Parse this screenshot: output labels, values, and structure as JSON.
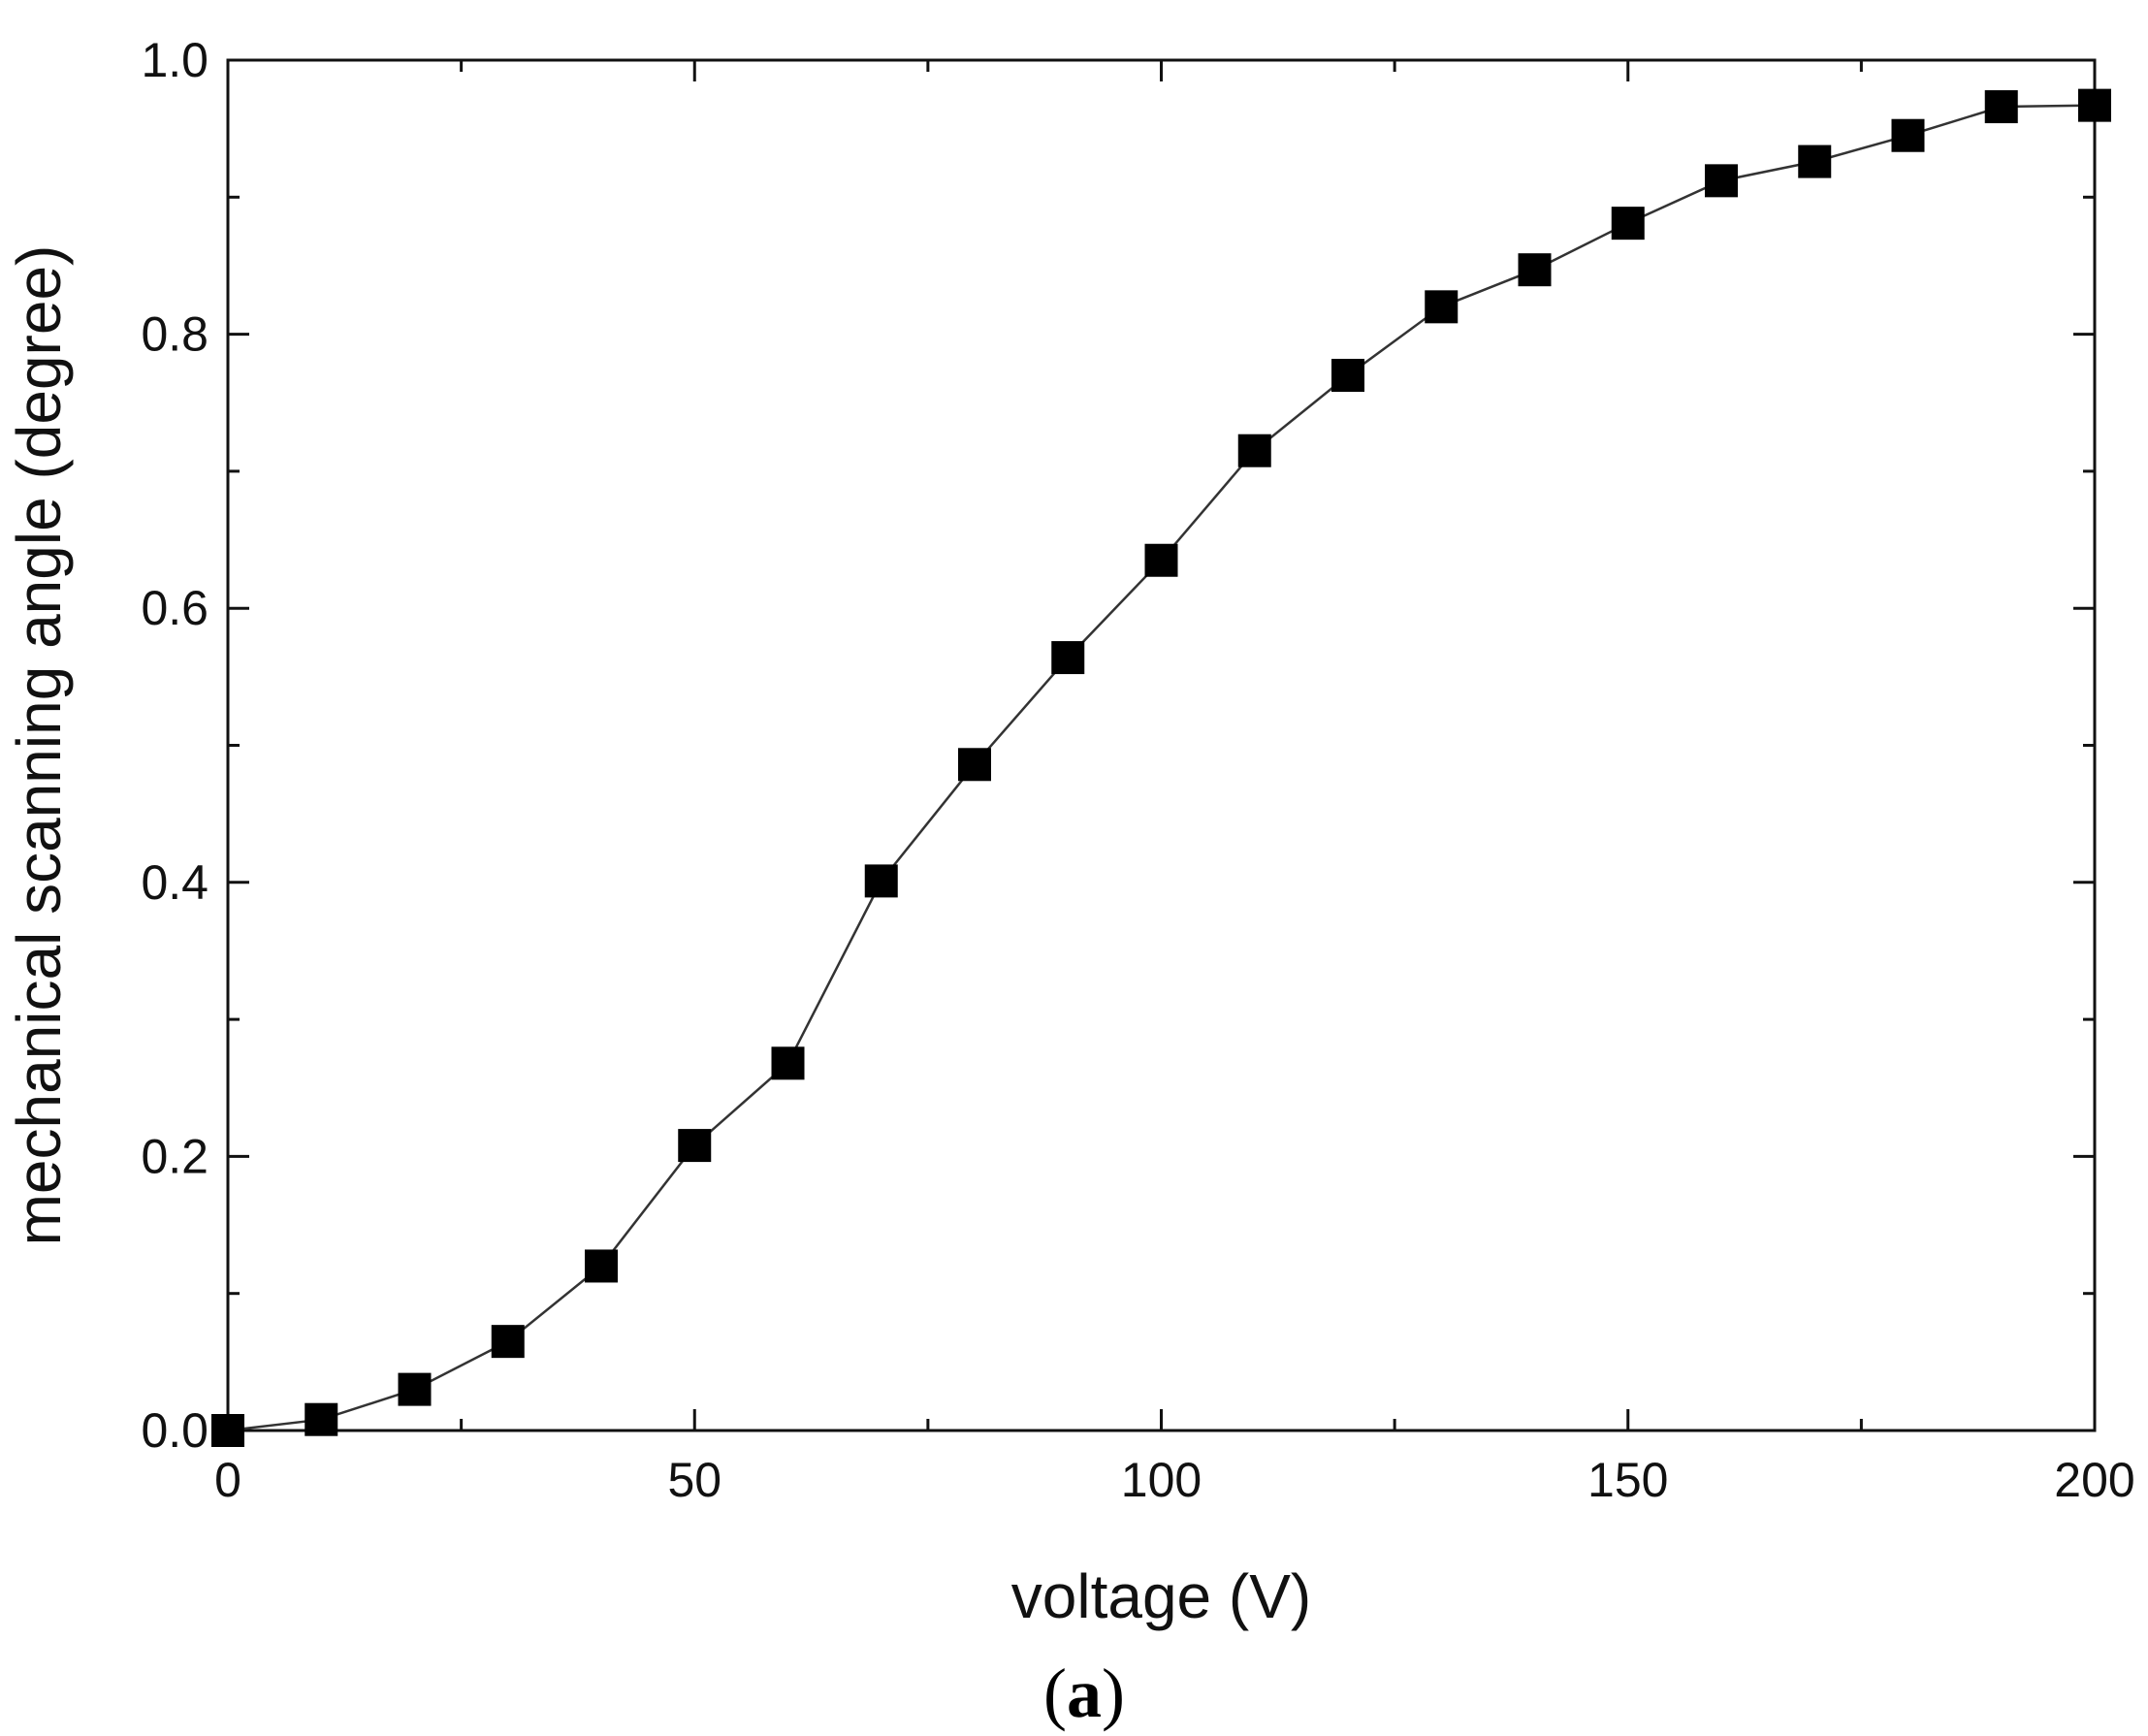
{
  "chart_data": {
    "type": "line",
    "title": "",
    "xlabel": "voltage (V)",
    "ylabel": "mechanical scanning angle (degree)",
    "xlim": [
      0,
      200
    ],
    "ylim": [
      0.0,
      1.0
    ],
    "x_ticks": [
      0,
      50,
      100,
      150,
      200
    ],
    "x_tick_labels": [
      "0",
      "50",
      "100",
      "150",
      "200"
    ],
    "x_minor_ticks": [
      25,
      75,
      125,
      175
    ],
    "y_ticks": [
      0.0,
      0.2,
      0.4,
      0.6,
      0.8,
      1.0
    ],
    "y_tick_labels": [
      "0.0",
      "0.2",
      "0.4",
      "0.6",
      "0.8",
      "1.0"
    ],
    "y_minor_ticks": [
      0.1,
      0.3,
      0.5,
      0.7,
      0.9
    ],
    "grid": false,
    "marker": "square",
    "series": [
      {
        "x": [
          0,
          10,
          20,
          30,
          40,
          50,
          60,
          70,
          80,
          90,
          100,
          110,
          120,
          130,
          140,
          150,
          160,
          170,
          180,
          190,
          200
        ],
        "y": [
          0.0,
          0.008,
          0.03,
          0.065,
          0.12,
          0.208,
          0.268,
          0.401,
          0.486,
          0.564,
          0.635,
          0.715,
          0.77,
          0.82,
          0.847,
          0.881,
          0.912,
          0.926,
          0.945,
          0.966,
          0.967
        ]
      }
    ],
    "colors": {
      "line": "#333333",
      "marker": "#000000",
      "axis": "#111111"
    }
  },
  "panel_label": {
    "open": "(",
    "letter": "a",
    "close": ")"
  }
}
